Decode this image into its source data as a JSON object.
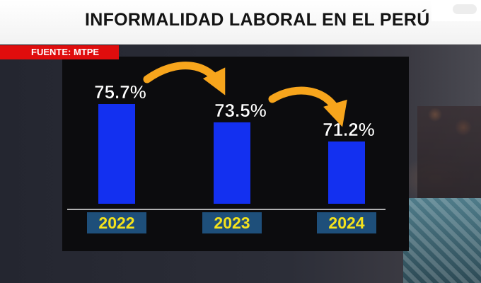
{
  "header": {
    "title": "INFORMALIDAD LABORAL EN EL PERÚ"
  },
  "source": {
    "label": "FUENTE: MTPE"
  },
  "colors": {
    "bar": "#1330f0",
    "label_box": "#1e4f7a",
    "year_text": "#f4e21c",
    "arrow": "#f7a51c",
    "source_bg": "#e00d0d"
  },
  "chart_data": {
    "type": "bar",
    "title": "INFORMALIDAD LABORAL EN EL PERÚ",
    "categories": [
      "2022",
      "2023",
      "2024"
    ],
    "values": [
      75.7,
      73.5,
      71.2
    ],
    "value_labels": [
      "75.7%",
      "73.5%",
      "71.2%"
    ],
    "xlabel": "",
    "ylabel": "",
    "grid": false,
    "annotations": [
      "arrow 2022→2023",
      "arrow 2023→2024"
    ]
  }
}
